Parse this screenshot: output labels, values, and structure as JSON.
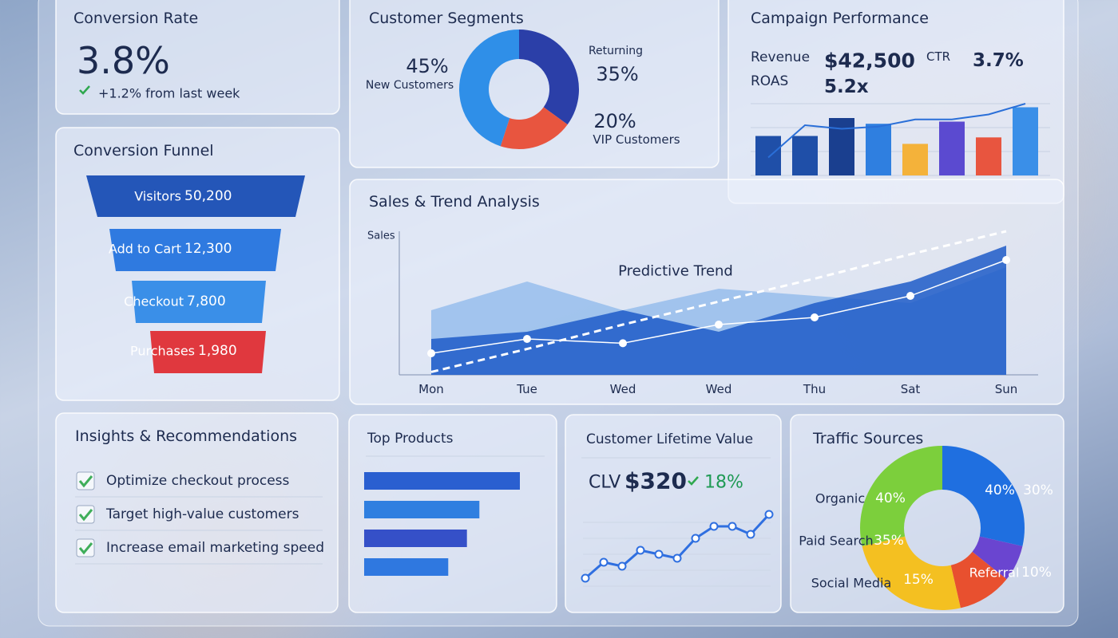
{
  "conversion_rate": {
    "title": "Conversion Rate",
    "value": "3.8%",
    "change": "+1.2% from last week"
  },
  "conversion_funnel": {
    "title": "Conversion Funnel",
    "stages": [
      {
        "label": "Visitors",
        "value": "50,200"
      },
      {
        "label": "Add to Cart",
        "value": "12,300"
      },
      {
        "label": "Checkout",
        "value": "7,800"
      },
      {
        "label": "Purchases",
        "value": "1,980"
      }
    ]
  },
  "customer_segments": {
    "title": "Customer Segments",
    "segments": [
      {
        "name": "New Customers",
        "value": 45,
        "value_label": "45%",
        "color": "#2f8fe8"
      },
      {
        "name": "Returning",
        "value": 35,
        "value_label": "35%",
        "color": "#2b3fa8"
      },
      {
        "name": "VIP Customers",
        "value": 20,
        "value_label": "20%",
        "color": "#e8553f"
      }
    ]
  },
  "campaign_performance": {
    "title": "Campaign Performance",
    "metrics": [
      {
        "label": "Revenue",
        "value": "$42,500"
      },
      {
        "label": "CTR",
        "value": "3.7%"
      },
      {
        "label": "ROAS",
        "value": "5.2x"
      }
    ],
    "bars": [
      55,
      55,
      80,
      72,
      44,
      75,
      53,
      95
    ],
    "bar_colors": [
      "#1f4fa8",
      "#1f4fa8",
      "#1a3f8f",
      "#2f7fe0",
      "#f4b23a",
      "#5b4ad0",
      "#e8553f",
      "#3a8fe8"
    ],
    "line": [
      25,
      70,
      65,
      68,
      78,
      78,
      85,
      100
    ]
  },
  "sales_trend": {
    "type": "area",
    "title": "Sales & Trend Analysis",
    "y_label": "Sales",
    "annotation": "Predictive Trend",
    "categories": [
      "Mon",
      "Tue",
      "Wed",
      "Wed",
      "Thu",
      "Sat",
      "Sun"
    ],
    "ylim": [
      0,
      100
    ],
    "series": [
      {
        "color": "#1f5cc8",
        "values": [
          25,
          30,
          45,
          30,
          50,
          65,
          90
        ]
      },
      {
        "color": "#6fa8e8",
        "values": [
          45,
          65,
          45,
          60,
          55,
          50,
          75
        ]
      },
      {
        "color": "#ffffff",
        "values": [
          15,
          25,
          22,
          35,
          40,
          55,
          80
        ]
      }
    ],
    "trend": [
      2,
      18,
      35,
      51,
      67,
      84,
      100
    ]
  },
  "insights": {
    "title": "Insights & Recommendations",
    "items": [
      "Optimize checkout process",
      "Target high-value customers",
      "Increase email marketing speed"
    ]
  },
  "top_products": {
    "title": "Top Products",
    "values": [
      100,
      74,
      66,
      54
    ]
  },
  "customer_lifetime_value": {
    "title": "Customer Lifetime Value",
    "label": "CLV",
    "value": "$320",
    "change": "18%",
    "values": [
      10,
      30,
      25,
      45,
      40,
      35,
      60,
      75,
      75,
      65,
      90
    ]
  },
  "traffic_sources": {
    "title": "Traffic Sources",
    "segments": [
      {
        "name": null,
        "value": 40,
        "value_label": "40%",
        "color": "#1f6fe0"
      },
      {
        "name": "Referral",
        "value": 10,
        "value_label": "10%",
        "color": "#6a45d0"
      },
      {
        "name": "Social Media",
        "value": 15,
        "value_label": "15%",
        "color": "#e8502f"
      },
      {
        "name": "Paid Search",
        "value": 35,
        "value_label": "35%",
        "color": "#f4c021"
      },
      {
        "name": "Organic",
        "value": 40,
        "value_label": "40%",
        "color": "#7ccf3c"
      }
    ],
    "extra_label": "30%"
  }
}
